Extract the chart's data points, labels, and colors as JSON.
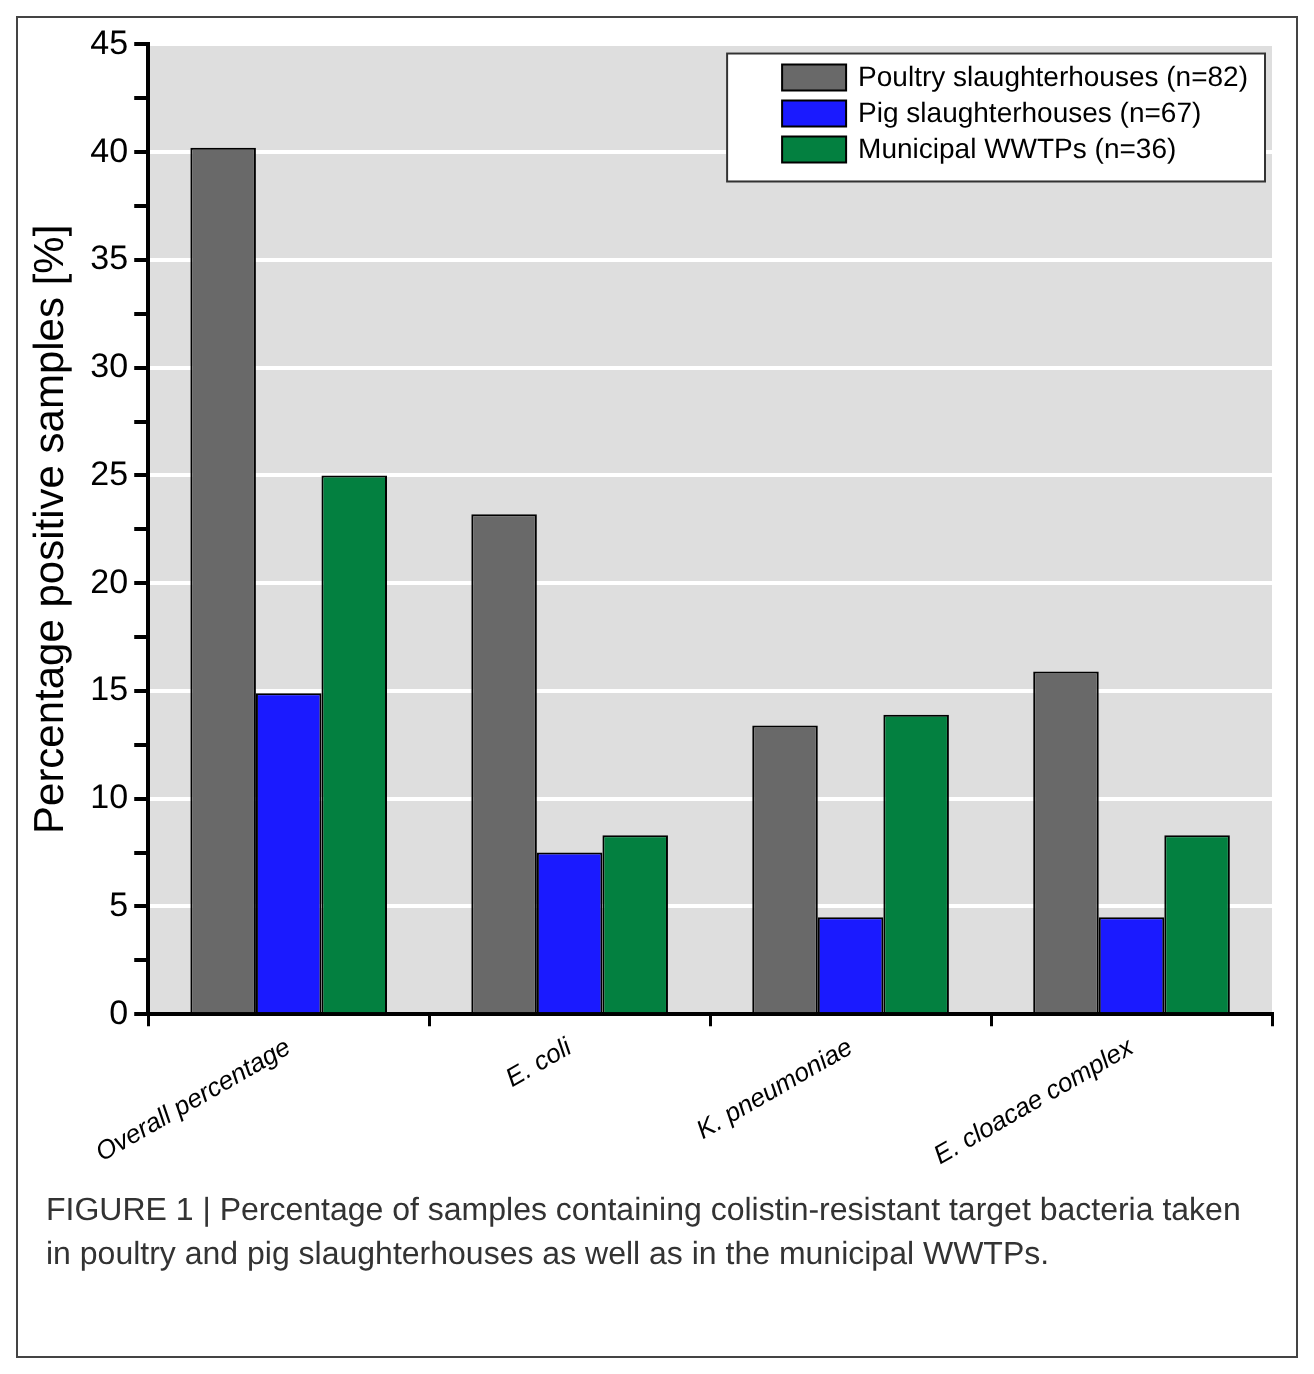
{
  "chart_data": {
    "type": "bar",
    "ylabel": "Percentage positive samples [%]",
    "categories": [
      "Overall percentage",
      "E. coli",
      "K. pneumoniae",
      "E. cloacae complex"
    ],
    "series": [
      {
        "name": "Poultry slaughterhouses (n=82)",
        "color": "#696969",
        "values": [
          40.2,
          23.2,
          13.4,
          15.9
        ]
      },
      {
        "name": "Pig slaughterhouses (n=67)",
        "color": "#1a1aff",
        "values": [
          14.9,
          7.5,
          4.5,
          4.5
        ]
      },
      {
        "name": "Municipal WWTPs (n=36)",
        "color": "#038040",
        "values": [
          25.0,
          8.3,
          13.9,
          8.3
        ]
      }
    ],
    "ylim": [
      0,
      45
    ],
    "yticks": [
      0,
      {
        "value": 2.5,
        "label": null
      },
      5,
      {
        "value": 7.5,
        "label": null
      },
      10,
      {
        "value": 12.5,
        "label": null
      },
      15,
      {
        "value": 17.5,
        "label": null
      },
      20,
      {
        "value": 22.5,
        "label": null
      },
      25,
      {
        "value": 27.5,
        "label": null
      },
      30,
      {
        "value": 32.5,
        "label": null
      },
      35,
      {
        "value": 37.5,
        "label": null
      },
      40,
      {
        "value": 42.5,
        "label": null
      },
      45
    ],
    "grid": "y",
    "legend": "top right",
    "annotations": [
      "FIGURE 1 | Percentage of samples containing colistin-resistant target bacteria taken in poultry and pig slaughterhouses as well as in the municipal WWTPs."
    ]
  }
}
